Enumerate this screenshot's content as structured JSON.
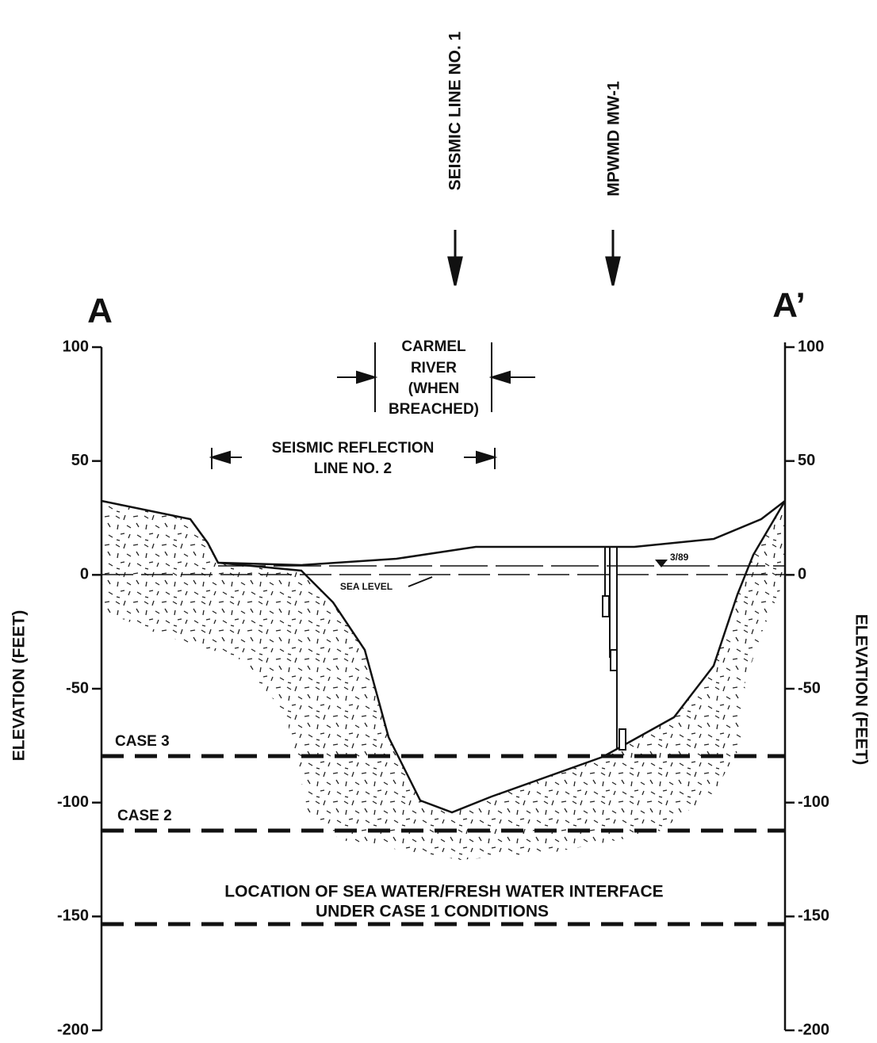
{
  "section": {
    "start": "A",
    "end": "A’"
  },
  "markers": [
    {
      "label": "SEISMIC LINE NO. 1"
    },
    {
      "label": "MPWMD MW-1"
    }
  ],
  "left_axis": {
    "label": "ELEVATION (FEET)",
    "ticks": [
      100,
      50,
      0,
      -50,
      -100,
      -150,
      -200
    ]
  },
  "right_axis": {
    "label": "ELEVATION (FEET)",
    "ticks": [
      100,
      50,
      0,
      -50,
      -100,
      -150,
      -200
    ]
  },
  "annotations": {
    "carmel_river": [
      "CARMEL",
      "RIVER",
      "(WHEN",
      "BREACHED)"
    ],
    "seismic_reflection": [
      "SEISMIC REFLECTION",
      "LINE NO. 2"
    ],
    "sea_level": "SEA LEVEL",
    "water_level": "3/89",
    "case3": "CASE 3",
    "case2": "CASE 2",
    "case1": [
      "LOCATION OF SEA WATER/FRESH WATER INTERFACE",
      "UNDER CASE 1 CONDITIONS"
    ]
  }
}
